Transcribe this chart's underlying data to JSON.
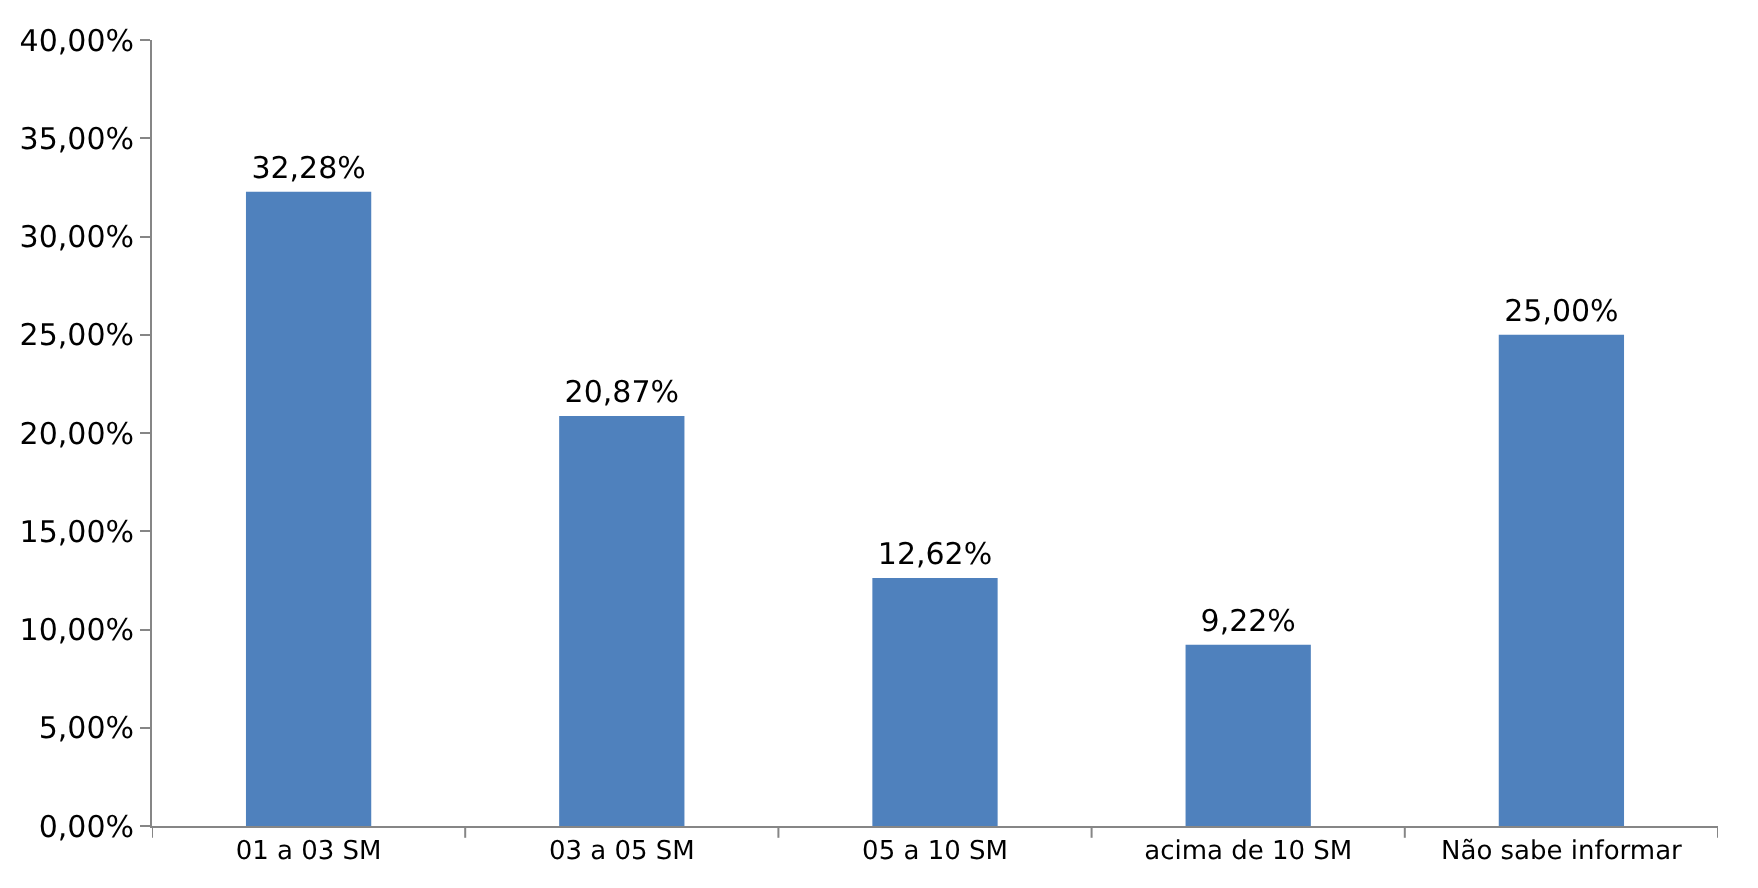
{
  "chart_data": {
    "type": "bar",
    "categories": [
      "01 a 03 SM",
      "03 a 05 SM",
      "05 a 10 SM",
      "acima de 10 SM",
      "Não sabe informar"
    ],
    "values": [
      32.28,
      20.87,
      12.62,
      9.22,
      25.0
    ],
    "value_labels": [
      "32,28%",
      "20,87%",
      "12,62%",
      "9,22%",
      "25,00%"
    ],
    "color": "#4f81bd",
    "ylim": [
      0,
      40
    ],
    "yticks": [
      {
        "value": 0,
        "label": "0,00%"
      },
      {
        "value": 5,
        "label": "5,00%"
      },
      {
        "value": 10,
        "label": "10,00%"
      },
      {
        "value": 15,
        "label": "15,00%"
      },
      {
        "value": 20,
        "label": "20,00%"
      },
      {
        "value": 25,
        "label": "25,00%"
      },
      {
        "value": 30,
        "label": "30,00%"
      },
      {
        "value": 35,
        "label": "35,00%"
      },
      {
        "value": 40,
        "label": "40,00%"
      }
    ],
    "grid": false,
    "legend": false
  }
}
